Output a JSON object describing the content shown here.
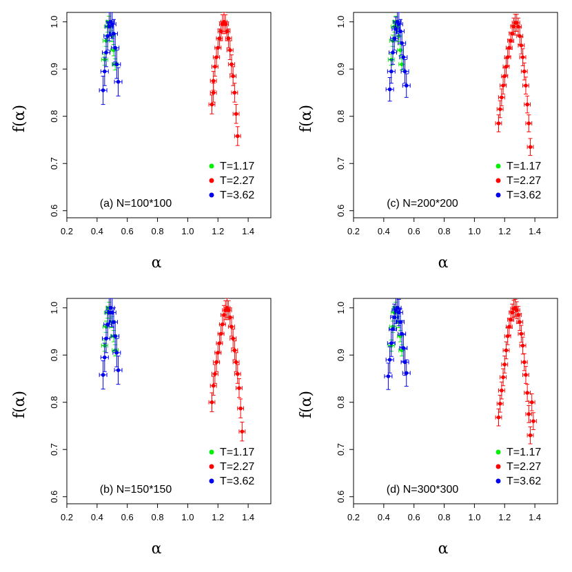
{
  "chart_data": [
    {
      "type": "scatter",
      "panel_label": "(a) N=100*100",
      "xlabel": "α",
      "ylabel": "f(α)",
      "xlim": [
        0.2,
        1.55
      ],
      "ylim": [
        0.585,
        1.02
      ],
      "xticks": [
        0.2,
        0.4,
        0.6,
        0.8,
        1.0,
        1.2,
        1.4
      ],
      "xtick_labels": [
        "0.2",
        "0.4",
        "0.6",
        "0.8",
        "1.0",
        "1.2",
        "1.4"
      ],
      "yticks": [
        0.6,
        0.7,
        0.8,
        0.9,
        1.0
      ],
      "ytick_labels": [
        "0.6",
        "0.7",
        "0.8",
        "0.9",
        "1.0"
      ],
      "legend_position": "bottom-right",
      "series": [
        {
          "name": "T=1.17",
          "color": "#00ee00",
          "x": [
            0.45,
            0.46,
            0.47,
            0.48,
            0.49,
            0.5,
            0.51,
            0.52
          ],
          "y": [
            0.92,
            0.96,
            0.99,
            1.0,
            0.99,
            0.97,
            0.94,
            0.91
          ],
          "xerr": 0.02,
          "yerr": 0.012
        },
        {
          "name": "T=2.27",
          "color": "#ff0000",
          "x": [
            1.16,
            1.17,
            1.17,
            1.18,
            1.19,
            1.2,
            1.21,
            1.22,
            1.23,
            1.24,
            1.25,
            1.26,
            1.27,
            1.28,
            1.29,
            1.3,
            1.31,
            1.32,
            1.33
          ],
          "y": [
            0.825,
            0.85,
            0.875,
            0.905,
            0.925,
            0.945,
            0.965,
            0.98,
            0.995,
            1.0,
            0.995,
            0.98,
            0.965,
            0.94,
            0.91,
            0.885,
            0.85,
            0.805,
            0.758
          ],
          "xerr": 0.02,
          "yerr": 0.02
        },
        {
          "name": "T=3.62",
          "color": "#0000ee",
          "x": [
            0.44,
            0.45,
            0.46,
            0.47,
            0.48,
            0.49,
            0.5,
            0.51,
            0.52,
            0.53,
            0.54
          ],
          "y": [
            0.855,
            0.895,
            0.935,
            0.97,
            0.99,
            1.0,
            0.995,
            0.975,
            0.945,
            0.91,
            0.873
          ],
          "xerr": 0.025,
          "yerr": 0.03
        }
      ]
    },
    {
      "type": "scatter",
      "panel_label": "(c) N=200*200",
      "xlabel": "α",
      "ylabel": "f(α)",
      "xlim": [
        0.2,
        1.55
      ],
      "ylim": [
        0.585,
        1.02
      ],
      "xticks": [
        0.2,
        0.4,
        0.6,
        0.8,
        1.0,
        1.2,
        1.4
      ],
      "xtick_labels": [
        "0.2",
        "0.4",
        "0.6",
        "0.8",
        "1.0",
        "1.2",
        "1.4"
      ],
      "yticks": [
        0.6,
        0.7,
        0.8,
        0.9,
        1.0
      ],
      "ytick_labels": [
        "0.6",
        "0.7",
        "0.8",
        "0.9",
        "1.0"
      ],
      "legend_position": "bottom-right",
      "series": [
        {
          "name": "T=1.17",
          "color": "#00ee00",
          "x": [
            0.45,
            0.46,
            0.47,
            0.48,
            0.49,
            0.5,
            0.51,
            0.52
          ],
          "y": [
            0.92,
            0.96,
            0.99,
            1.0,
            0.99,
            0.97,
            0.94,
            0.91
          ],
          "xerr": 0.02,
          "yerr": 0.012
        },
        {
          "name": "T=2.27",
          "color": "#ff0000",
          "x": [
            1.16,
            1.17,
            1.18,
            1.19,
            1.2,
            1.21,
            1.22,
            1.23,
            1.24,
            1.25,
            1.26,
            1.27,
            1.28,
            1.29,
            1.3,
            1.31,
            1.32,
            1.33,
            1.34,
            1.35,
            1.36,
            1.37
          ],
          "y": [
            0.785,
            0.815,
            0.84,
            0.865,
            0.885,
            0.905,
            0.925,
            0.945,
            0.96,
            0.975,
            0.99,
            0.998,
            0.998,
            0.99,
            0.97,
            0.95,
            0.925,
            0.895,
            0.865,
            0.825,
            0.785,
            0.735
          ],
          "xerr": 0.02,
          "yerr": 0.018
        },
        {
          "name": "T=3.62",
          "color": "#0000ee",
          "x": [
            0.44,
            0.45,
            0.46,
            0.47,
            0.48,
            0.49,
            0.5,
            0.51,
            0.52,
            0.53,
            0.54,
            0.55
          ],
          "y": [
            0.857,
            0.895,
            0.935,
            0.965,
            0.985,
            1.0,
            0.995,
            0.98,
            0.955,
            0.925,
            0.895,
            0.865
          ],
          "xerr": 0.025,
          "yerr": 0.025
        }
      ]
    },
    {
      "type": "scatter",
      "panel_label": "(b) N=150*150",
      "xlabel": "α",
      "ylabel": "f(α)",
      "xlim": [
        0.2,
        1.55
      ],
      "ylim": [
        0.585,
        1.02
      ],
      "xticks": [
        0.2,
        0.4,
        0.6,
        0.8,
        1.0,
        1.2,
        1.4
      ],
      "xtick_labels": [
        "0.2",
        "0.4",
        "0.6",
        "0.8",
        "1.0",
        "1.2",
        "1.4"
      ],
      "yticks": [
        0.6,
        0.7,
        0.8,
        0.9,
        1.0
      ],
      "ytick_labels": [
        "0.6",
        "0.7",
        "0.8",
        "0.9",
        "1.0"
      ],
      "legend_position": "bottom-right",
      "series": [
        {
          "name": "T=1.17",
          "color": "#00ee00",
          "x": [
            0.45,
            0.46,
            0.47,
            0.48,
            0.49,
            0.5,
            0.51,
            0.52
          ],
          "y": [
            0.92,
            0.96,
            0.99,
            1.0,
            0.99,
            0.97,
            0.94,
            0.91
          ],
          "xerr": 0.02,
          "yerr": 0.012
        },
        {
          "name": "T=2.27",
          "color": "#ff0000",
          "x": [
            1.16,
            1.17,
            1.18,
            1.19,
            1.2,
            1.21,
            1.22,
            1.23,
            1.24,
            1.25,
            1.26,
            1.27,
            1.28,
            1.29,
            1.3,
            1.31,
            1.32,
            1.33,
            1.34,
            1.35,
            1.36
          ],
          "y": [
            0.8,
            0.835,
            0.86,
            0.885,
            0.905,
            0.925,
            0.945,
            0.965,
            0.985,
            0.995,
            1.0,
            0.995,
            0.98,
            0.96,
            0.935,
            0.91,
            0.885,
            0.86,
            0.83,
            0.787,
            0.738
          ],
          "xerr": 0.02,
          "yerr": 0.02
        },
        {
          "name": "T=3.62",
          "color": "#0000ee",
          "x": [
            0.44,
            0.45,
            0.46,
            0.47,
            0.48,
            0.49,
            0.5,
            0.51,
            0.52,
            0.53,
            0.54
          ],
          "y": [
            0.858,
            0.895,
            0.935,
            0.965,
            0.99,
            1.0,
            0.99,
            0.97,
            0.94,
            0.905,
            0.868
          ],
          "xerr": 0.025,
          "yerr": 0.03
        }
      ]
    },
    {
      "type": "scatter",
      "panel_label": "(d) N=300*300",
      "xlabel": "α",
      "ylabel": "f(α)",
      "xlim": [
        0.2,
        1.55
      ],
      "ylim": [
        0.585,
        1.02
      ],
      "xticks": [
        0.2,
        0.4,
        0.6,
        0.8,
        1.0,
        1.2,
        1.4
      ],
      "xtick_labels": [
        "0.2",
        "0.4",
        "0.6",
        "0.8",
        "1.0",
        "1.2",
        "1.4"
      ],
      "yticks": [
        0.6,
        0.7,
        0.8,
        0.9,
        1.0
      ],
      "ytick_labels": [
        "0.6",
        "0.7",
        "0.8",
        "0.9",
        "1.0"
      ],
      "legend_position": "bottom-right",
      "series": [
        {
          "name": "T=1.17",
          "color": "#00ee00",
          "x": [
            0.45,
            0.46,
            0.47,
            0.48,
            0.49,
            0.5,
            0.51,
            0.52
          ],
          "y": [
            0.92,
            0.96,
            0.99,
            1.0,
            0.99,
            0.97,
            0.94,
            0.91
          ],
          "xerr": 0.02,
          "yerr": 0.012
        },
        {
          "name": "T=2.27",
          "color": "#ff0000",
          "x": [
            1.16,
            1.17,
            1.18,
            1.19,
            1.2,
            1.21,
            1.22,
            1.23,
            1.24,
            1.25,
            1.26,
            1.27,
            1.28,
            1.29,
            1.3,
            1.31,
            1.32,
            1.33,
            1.34,
            1.35,
            1.36,
            1.37,
            1.38,
            1.39
          ],
          "y": [
            0.768,
            0.797,
            0.825,
            0.853,
            0.88,
            0.91,
            0.94,
            0.96,
            0.975,
            0.99,
            0.998,
            1.0,
            0.995,
            0.985,
            0.97,
            0.945,
            0.92,
            0.885,
            0.858,
            0.82,
            0.775,
            0.73,
            0.8,
            0.76
          ],
          "xerr": 0.02,
          "yerr": 0.018
        },
        {
          "name": "T=3.62",
          "color": "#0000ee",
          "x": [
            0.43,
            0.44,
            0.45,
            0.46,
            0.47,
            0.48,
            0.49,
            0.5,
            0.51,
            0.52,
            0.53,
            0.54,
            0.55
          ],
          "y": [
            0.855,
            0.89,
            0.925,
            0.955,
            0.98,
            0.995,
            1.0,
            0.99,
            0.97,
            0.945,
            0.915,
            0.885,
            0.862
          ],
          "xerr": 0.025,
          "yerr": 0.028
        }
      ]
    }
  ]
}
